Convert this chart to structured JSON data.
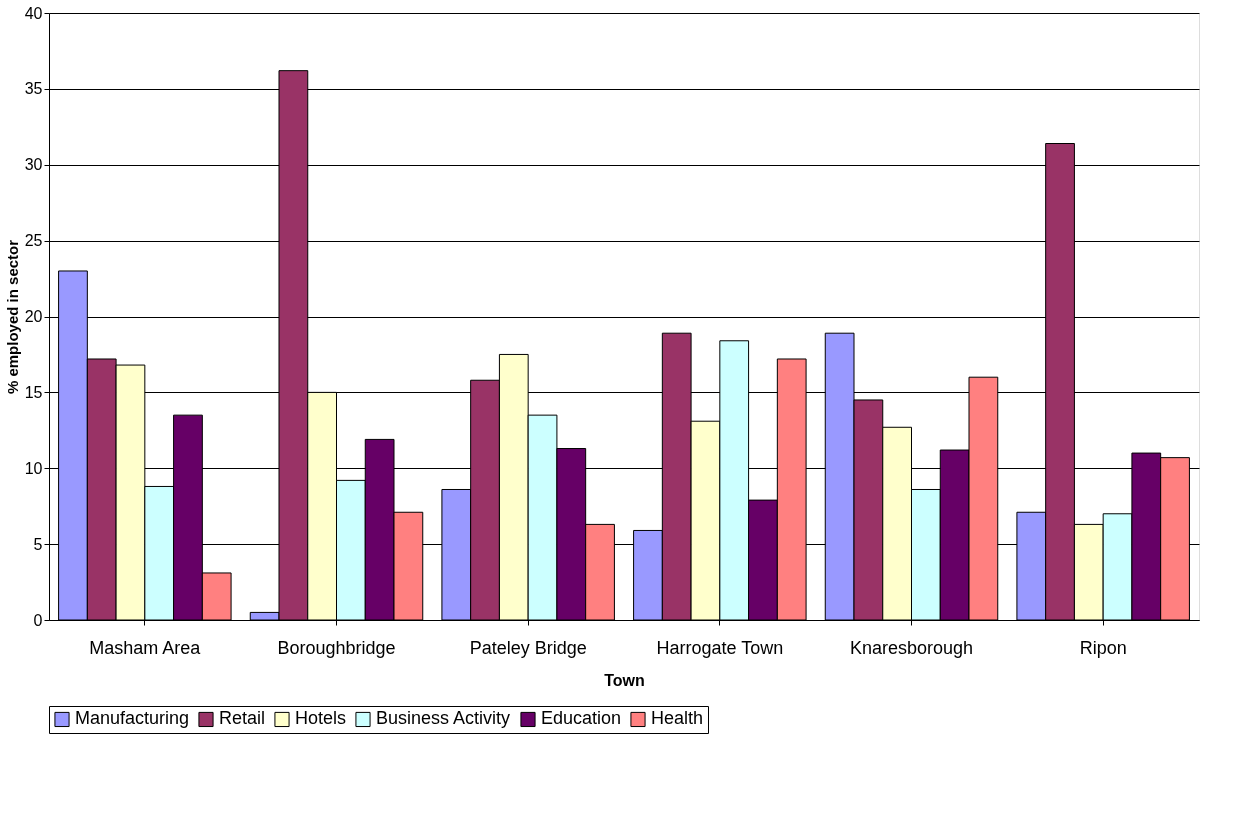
{
  "chart_data": {
    "type": "bar",
    "xlabel": "Town",
    "ylabel": "% employed in sector",
    "categories": [
      "Masham Area",
      "Boroughbridge",
      "Pateley Bridge",
      "Harrogate Town",
      "Knaresborough",
      "Ripon"
    ],
    "series": [
      {
        "name": "Manufacturing",
        "color": "#9999ff",
        "values": [
          23.0,
          0.5,
          8.6,
          5.9,
          18.9,
          7.1
        ]
      },
      {
        "name": "Retail",
        "color": "#993366",
        "values": [
          17.2,
          36.2,
          15.8,
          18.9,
          14.5,
          31.4
        ]
      },
      {
        "name": "Hotels",
        "color": "#ffffcc",
        "values": [
          16.8,
          15.0,
          17.5,
          13.1,
          12.7,
          6.3
        ]
      },
      {
        "name": "Business Activity",
        "color": "#ccffff",
        "values": [
          8.8,
          9.2,
          13.5,
          18.4,
          8.6,
          7.0
        ]
      },
      {
        "name": "Education",
        "color": "#660066",
        "values": [
          13.5,
          11.9,
          11.3,
          7.9,
          11.2,
          11.0
        ]
      },
      {
        "name": "Health",
        "color": "#ff8080",
        "values": [
          3.1,
          7.1,
          6.3,
          17.2,
          16.0,
          10.7
        ]
      }
    ],
    "ylim": [
      0,
      40
    ],
    "yticks": [
      0,
      5,
      10,
      15,
      20,
      25,
      30,
      35,
      40
    ],
    "grid": "y",
    "legend": "bottom"
  }
}
